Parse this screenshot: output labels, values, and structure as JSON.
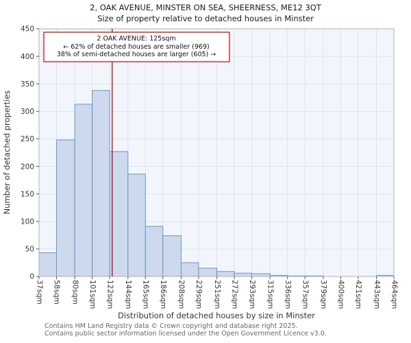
{
  "title": "2, OAK AVENUE, MINSTER ON SEA, SHEERNESS, ME12 3QT",
  "subtitle": "Size of property relative to detached houses in Minster",
  "annotation": {
    "line1": "2 OAK AVENUE: 125sqm",
    "line2": "← 62% of detached houses are smaller (969)",
    "line3": "38% of semi-detached houses are larger (605) →"
  },
  "footer": {
    "line1": "Contains HM Land Registry data © Crown copyright and database right 2025.",
    "line2": "Contains public sector information licensed under the Open Government Licence v3.0."
  },
  "chart_data": {
    "type": "bar",
    "title": "2, OAK AVENUE, MINSTER ON SEA, SHEERNESS, ME12 3QT",
    "subtitle": "Size of property relative to detached houses in Minster",
    "xlabel": "Distribution of detached houses by size in Minster",
    "ylabel": "Number of detached properties",
    "bin_edges_sqm": [
      37,
      58,
      80,
      101,
      122,
      144,
      165,
      186,
      208,
      229,
      251,
      272,
      293,
      315,
      336,
      357,
      379,
      400,
      421,
      443,
      464
    ],
    "tick_labels": [
      "37sqm",
      "58sqm",
      "80sqm",
      "101sqm",
      "122sqm",
      "144sqm",
      "165sqm",
      "186sqm",
      "208sqm",
      "229sqm",
      "251sqm",
      "272sqm",
      "293sqm",
      "315sqm",
      "336sqm",
      "357sqm",
      "379sqm",
      "400sqm",
      "421sqm",
      "443sqm",
      "464sqm"
    ],
    "values": [
      43,
      248,
      313,
      338,
      227,
      186,
      91,
      74,
      25,
      15,
      9,
      6,
      5,
      2,
      1,
      1,
      0,
      0,
      0,
      2
    ],
    "ylim": [
      0,
      450
    ],
    "ytick_step": 50,
    "grid": true,
    "marker_value_sqm": 125,
    "colors": {
      "bar_fill": "#cdd9ed",
      "bar_stroke": "#6b93c5",
      "marker_line": "#bb0000",
      "grid": "#d9e1ee",
      "plot_bg": "#f2f6fc",
      "plot_border": "#b0b0b0",
      "tick_mark": "#555555"
    }
  }
}
